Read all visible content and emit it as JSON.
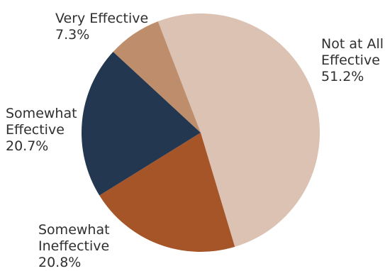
{
  "chart_data": {
    "type": "pie",
    "start_angle_deg": -21,
    "direction": "clockwise",
    "slices": [
      {
        "label_lines": [
          "Not at All",
          "Effective"
        ],
        "value": 51.2,
        "value_label": "51.2%",
        "color": "#dbc2b2"
      },
      {
        "label_lines": [
          "Somewhat",
          "Ineffective"
        ],
        "value": 20.8,
        "value_label": "20.8%",
        "color": "#a65528"
      },
      {
        "label_lines": [
          "Somewhat",
          "Effective"
        ],
        "value": 20.7,
        "value_label": "20.7%",
        "color": "#233750"
      },
      {
        "label_lines": [
          "Very Effective"
        ],
        "value": 7.3,
        "value_label": "7.3%",
        "color": "#bd8d6c"
      }
    ]
  }
}
